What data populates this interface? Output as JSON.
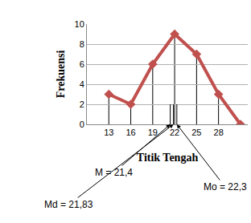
{
  "chart_data": {
    "type": "line",
    "x_label": "Titik Tengah",
    "y_label": "Frekuensi",
    "x": [
      13,
      16,
      19,
      22,
      25,
      28,
      31
    ],
    "values": [
      3,
      2,
      6,
      9,
      7,
      3,
      0
    ],
    "color": "#c0504d",
    "marker": "diamond",
    "xlim": [
      10,
      32
    ],
    "xticks": [
      13,
      16,
      19,
      22,
      25,
      28
    ],
    "ylim": [
      0,
      10
    ],
    "yticks": [
      0,
      2,
      4,
      6,
      8,
      10
    ],
    "grid": true,
    "annotations": [
      {
        "text": "M = 21,4",
        "x": 21.4
      },
      {
        "text": "Md = 21,83",
        "x": 21.83
      },
      {
        "text": "Mo = 22,3",
        "x": 22.3
      }
    ]
  }
}
